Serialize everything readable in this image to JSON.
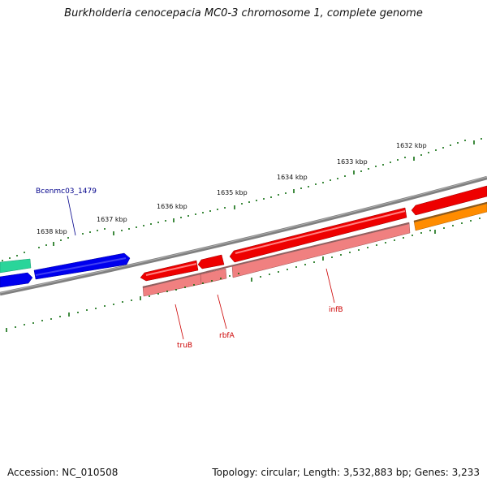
{
  "title": "Burkholderia cenocepacia MC0-3 chromosome 1, complete genome",
  "footer": {
    "accession": "Accession: NC_010508",
    "summary": "Topology: circular; Length: 3,532,883 bp; Genes: 3,233"
  },
  "colors": {
    "backbone": "#808080",
    "tick": "#006400",
    "forward_label": "#00008b",
    "reverse_label": "#cc0000",
    "gene_blue": "#0000ee",
    "gene_red": "#ee0000",
    "gene_pink": "#f08080",
    "gene_green": "#2ad59a",
    "gene_orange": "#ff8c00"
  },
  "kbp_labels": {
    "k1632": "1632 kbp",
    "k1633": "1633 kbp",
    "k1634": "1634 kbp",
    "k1635": "1635 kbp",
    "k1636": "1636 kbp",
    "k1637": "1637 kbp",
    "k1638": "1638 kbp"
  },
  "gene_labels": {
    "bcenmc03_1479": "Bcenmc03_1479",
    "truB": "truB",
    "rbfA": "rbfA",
    "infB": "infB"
  }
}
